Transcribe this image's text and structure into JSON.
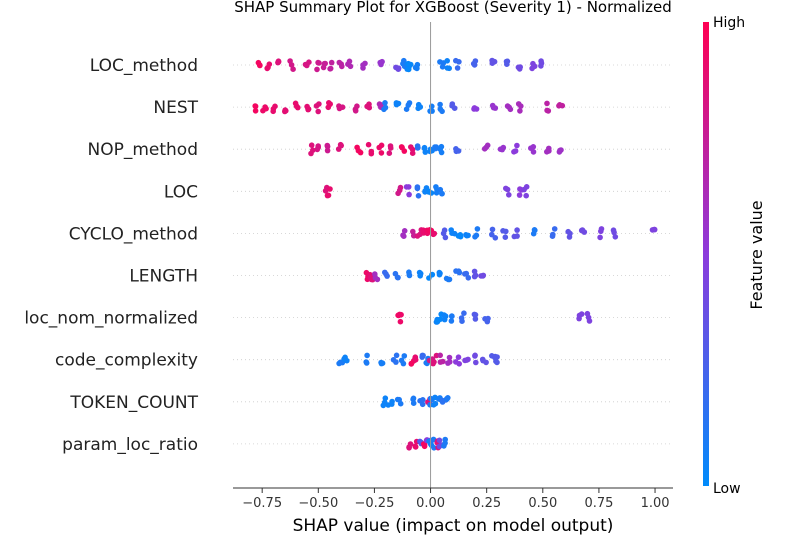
{
  "chart_data": {
    "type": "scatter",
    "title": "SHAP Summary Plot for XGBoost (Severity 1) - Normalized",
    "xlabel": "SHAP value (impact on model output)",
    "ylabel": "",
    "xlim": [
      -0.88,
      1.08
    ],
    "x_ticks": [
      -0.75,
      -0.5,
      -0.25,
      0.0,
      0.25,
      0.5,
      0.75,
      1.0
    ],
    "x_tick_labels": [
      "−0.75",
      "−0.50",
      "−0.25",
      "0.00",
      "0.25",
      "0.50",
      "0.75",
      "1.00"
    ],
    "colorbar": {
      "label": "Feature value",
      "high_label": "High",
      "low_label": "Low",
      "high_color": "#ff0052",
      "mid_color": "#8c3bdc",
      "low_color": "#008bfb"
    },
    "grid": false,
    "features": [
      {
        "name": "LOC_method",
        "points": [
          {
            "x": -0.76,
            "v": 0.95
          },
          {
            "x": -0.72,
            "v": 0.9
          },
          {
            "x": -0.68,
            "v": 0.85
          },
          {
            "x": -0.62,
            "v": 0.8
          },
          {
            "x": -0.55,
            "v": 0.82
          },
          {
            "x": -0.5,
            "v": 0.78
          },
          {
            "x": -0.47,
            "v": 0.75
          },
          {
            "x": -0.44,
            "v": 0.72
          },
          {
            "x": -0.4,
            "v": 0.7
          },
          {
            "x": -0.36,
            "v": 0.65
          },
          {
            "x": -0.3,
            "v": 0.6
          },
          {
            "x": -0.22,
            "v": 0.55
          },
          {
            "x": -0.15,
            "v": 0.4
          },
          {
            "x": -0.12,
            "v": 0.1
          },
          {
            "x": -0.1,
            "v": 0.05
          },
          {
            "x": -0.09,
            "v": 0.02
          },
          {
            "x": -0.06,
            "v": 0.08
          },
          {
            "x": 0.05,
            "v": 0.1
          },
          {
            "x": 0.08,
            "v": 0.05
          },
          {
            "x": 0.12,
            "v": 0.2
          },
          {
            "x": 0.2,
            "v": 0.25
          },
          {
            "x": 0.28,
            "v": 0.35
          },
          {
            "x": 0.34,
            "v": 0.3
          },
          {
            "x": 0.4,
            "v": 0.4
          },
          {
            "x": 0.46,
            "v": 0.45
          },
          {
            "x": 0.5,
            "v": 0.4
          }
        ]
      },
      {
        "name": "NEST",
        "points": [
          {
            "x": -0.78,
            "v": 0.95
          },
          {
            "x": -0.74,
            "v": 0.92
          },
          {
            "x": -0.7,
            "v": 0.9
          },
          {
            "x": -0.65,
            "v": 0.88
          },
          {
            "x": -0.6,
            "v": 0.9
          },
          {
            "x": -0.55,
            "v": 0.88
          },
          {
            "x": -0.5,
            "v": 0.85
          },
          {
            "x": -0.45,
            "v": 0.9
          },
          {
            "x": -0.4,
            "v": 0.82
          },
          {
            "x": -0.33,
            "v": 0.8
          },
          {
            "x": -0.28,
            "v": 0.85
          },
          {
            "x": -0.22,
            "v": 0.65
          },
          {
            "x": -0.2,
            "v": 0.1
          },
          {
            "x": -0.15,
            "v": 0.05
          },
          {
            "x": -0.1,
            "v": 0.1
          },
          {
            "x": -0.05,
            "v": 0.05
          },
          {
            "x": 0.0,
            "v": 0.08
          },
          {
            "x": 0.05,
            "v": 0.1
          },
          {
            "x": 0.1,
            "v": 0.3
          },
          {
            "x": 0.2,
            "v": 0.5
          },
          {
            "x": 0.28,
            "v": 0.55
          },
          {
            "x": 0.35,
            "v": 0.6
          },
          {
            "x": 0.4,
            "v": 0.62
          },
          {
            "x": 0.52,
            "v": 0.7
          },
          {
            "x": 0.58,
            "v": 0.72
          }
        ]
      },
      {
        "name": "NOP_method",
        "points": [
          {
            "x": -0.53,
            "v": 0.85
          },
          {
            "x": -0.5,
            "v": 0.82
          },
          {
            "x": -0.46,
            "v": 0.78
          },
          {
            "x": -0.4,
            "v": 0.85
          },
          {
            "x": -0.32,
            "v": 0.95
          },
          {
            "x": -0.27,
            "v": 0.9
          },
          {
            "x": -0.22,
            "v": 0.92
          },
          {
            "x": -0.18,
            "v": 0.85
          },
          {
            "x": -0.12,
            "v": 0.95
          },
          {
            "x": -0.08,
            "v": 0.88
          },
          {
            "x": -0.05,
            "v": 0.15
          },
          {
            "x": -0.02,
            "v": 0.05
          },
          {
            "x": 0.0,
            "v": 0.05
          },
          {
            "x": 0.02,
            "v": 0.1
          },
          {
            "x": 0.05,
            "v": 0.08
          },
          {
            "x": 0.12,
            "v": 0.25
          },
          {
            "x": 0.25,
            "v": 0.6
          },
          {
            "x": 0.32,
            "v": 0.55
          },
          {
            "x": 0.38,
            "v": 0.5
          },
          {
            "x": 0.45,
            "v": 0.55
          },
          {
            "x": 0.52,
            "v": 0.6
          },
          {
            "x": 0.58,
            "v": 0.58
          }
        ]
      },
      {
        "name": "LOC",
        "points": [
          {
            "x": -0.46,
            "v": 0.85
          },
          {
            "x": -0.45,
            "v": 0.9
          },
          {
            "x": -0.14,
            "v": 0.8
          },
          {
            "x": -0.1,
            "v": 0.5
          },
          {
            "x": -0.05,
            "v": 0.15
          },
          {
            "x": -0.02,
            "v": 0.05
          },
          {
            "x": 0.0,
            "v": 0.03
          },
          {
            "x": 0.02,
            "v": 0.08
          },
          {
            "x": 0.05,
            "v": 0.1
          },
          {
            "x": 0.34,
            "v": 0.45
          },
          {
            "x": 0.4,
            "v": 0.5
          },
          {
            "x": 0.42,
            "v": 0.45
          }
        ]
      },
      {
        "name": "CYCLO_method",
        "points": [
          {
            "x": -0.12,
            "v": 0.6
          },
          {
            "x": -0.08,
            "v": 0.75
          },
          {
            "x": -0.05,
            "v": 0.85
          },
          {
            "x": -0.03,
            "v": 0.9
          },
          {
            "x": -0.01,
            "v": 0.92
          },
          {
            "x": 0.0,
            "v": 0.95
          },
          {
            "x": 0.02,
            "v": 0.9
          },
          {
            "x": 0.06,
            "v": 0.3
          },
          {
            "x": 0.1,
            "v": 0.05
          },
          {
            "x": 0.13,
            "v": 0.02
          },
          {
            "x": 0.16,
            "v": 0.05
          },
          {
            "x": 0.2,
            "v": 0.1
          },
          {
            "x": 0.28,
            "v": 0.25
          },
          {
            "x": 0.33,
            "v": 0.3
          },
          {
            "x": 0.38,
            "v": 0.35
          },
          {
            "x": 0.46,
            "v": 0.1
          },
          {
            "x": 0.55,
            "v": 0.2
          },
          {
            "x": 0.62,
            "v": 0.35
          },
          {
            "x": 0.68,
            "v": 0.4
          },
          {
            "x": 0.76,
            "v": 0.45
          },
          {
            "x": 0.82,
            "v": 0.4
          },
          {
            "x": 0.99,
            "v": 0.45
          }
        ]
      },
      {
        "name": "LENGTH",
        "points": [
          {
            "x": -0.28,
            "v": 0.92
          },
          {
            "x": -0.27,
            "v": 0.88
          },
          {
            "x": -0.26,
            "v": 0.85
          },
          {
            "x": -0.24,
            "v": 0.6
          },
          {
            "x": -0.2,
            "v": 0.2
          },
          {
            "x": -0.15,
            "v": 0.15
          },
          {
            "x": -0.1,
            "v": 0.1
          },
          {
            "x": -0.05,
            "v": 0.05
          },
          {
            "x": 0.0,
            "v": 0.02
          },
          {
            "x": 0.04,
            "v": 0.05
          },
          {
            "x": 0.08,
            "v": 0.1
          },
          {
            "x": 0.12,
            "v": 0.15
          },
          {
            "x": 0.16,
            "v": 0.2
          },
          {
            "x": 0.2,
            "v": 0.35
          },
          {
            "x": 0.23,
            "v": 0.4
          }
        ]
      },
      {
        "name": "loc_nom_normalized",
        "points": [
          {
            "x": -0.14,
            "v": 0.95
          },
          {
            "x": -0.13,
            "v": 0.92
          },
          {
            "x": 0.03,
            "v": 0.05
          },
          {
            "x": 0.04,
            "v": 0.02
          },
          {
            "x": 0.06,
            "v": 0.05
          },
          {
            "x": 0.1,
            "v": 0.1
          },
          {
            "x": 0.14,
            "v": 0.2
          },
          {
            "x": 0.2,
            "v": 0.3
          },
          {
            "x": 0.25,
            "v": 0.25
          },
          {
            "x": 0.67,
            "v": 0.45
          },
          {
            "x": 0.7,
            "v": 0.45
          }
        ]
      },
      {
        "name": "code_complexity",
        "points": [
          {
            "x": -0.4,
            "v": 0.1
          },
          {
            "x": -0.38,
            "v": 0.05
          },
          {
            "x": -0.28,
            "v": 0.1
          },
          {
            "x": -0.22,
            "v": 0.08
          },
          {
            "x": -0.16,
            "v": 0.15
          },
          {
            "x": -0.12,
            "v": 0.1
          },
          {
            "x": -0.08,
            "v": 0.95
          },
          {
            "x": -0.06,
            "v": 0.9
          },
          {
            "x": -0.04,
            "v": 0.2
          },
          {
            "x": -0.02,
            "v": 0.1
          },
          {
            "x": 0.0,
            "v": 0.8
          },
          {
            "x": 0.02,
            "v": 0.85
          },
          {
            "x": 0.05,
            "v": 0.7
          },
          {
            "x": 0.08,
            "v": 0.6
          },
          {
            "x": 0.12,
            "v": 0.5
          },
          {
            "x": 0.16,
            "v": 0.45
          },
          {
            "x": 0.2,
            "v": 0.4
          },
          {
            "x": 0.24,
            "v": 0.35
          },
          {
            "x": 0.28,
            "v": 0.3
          },
          {
            "x": 0.3,
            "v": 0.3
          }
        ]
      },
      {
        "name": "TOKEN_COUNT",
        "points": [
          {
            "x": -0.21,
            "v": 0.05
          },
          {
            "x": -0.18,
            "v": 0.05
          },
          {
            "x": -0.14,
            "v": 0.1
          },
          {
            "x": -0.08,
            "v": 0.1
          },
          {
            "x": -0.04,
            "v": 0.15
          },
          {
            "x": -0.01,
            "v": 0.85
          },
          {
            "x": 0.0,
            "v": 0.1
          },
          {
            "x": 0.02,
            "v": 0.05
          },
          {
            "x": 0.04,
            "v": 0.08
          },
          {
            "x": 0.06,
            "v": 0.15
          },
          {
            "x": 0.08,
            "v": 0.1
          }
        ]
      },
      {
        "name": "param_loc_ratio",
        "points": [
          {
            "x": -0.09,
            "v": 0.85
          },
          {
            "x": -0.07,
            "v": 0.9
          },
          {
            "x": -0.05,
            "v": 0.3
          },
          {
            "x": -0.03,
            "v": 0.95
          },
          {
            "x": -0.01,
            "v": 0.5
          },
          {
            "x": 0.0,
            "v": 0.05
          },
          {
            "x": 0.01,
            "v": 0.1
          },
          {
            "x": 0.03,
            "v": 0.85
          },
          {
            "x": 0.04,
            "v": 0.4
          },
          {
            "x": 0.06,
            "v": 0.1
          }
        ]
      }
    ]
  }
}
